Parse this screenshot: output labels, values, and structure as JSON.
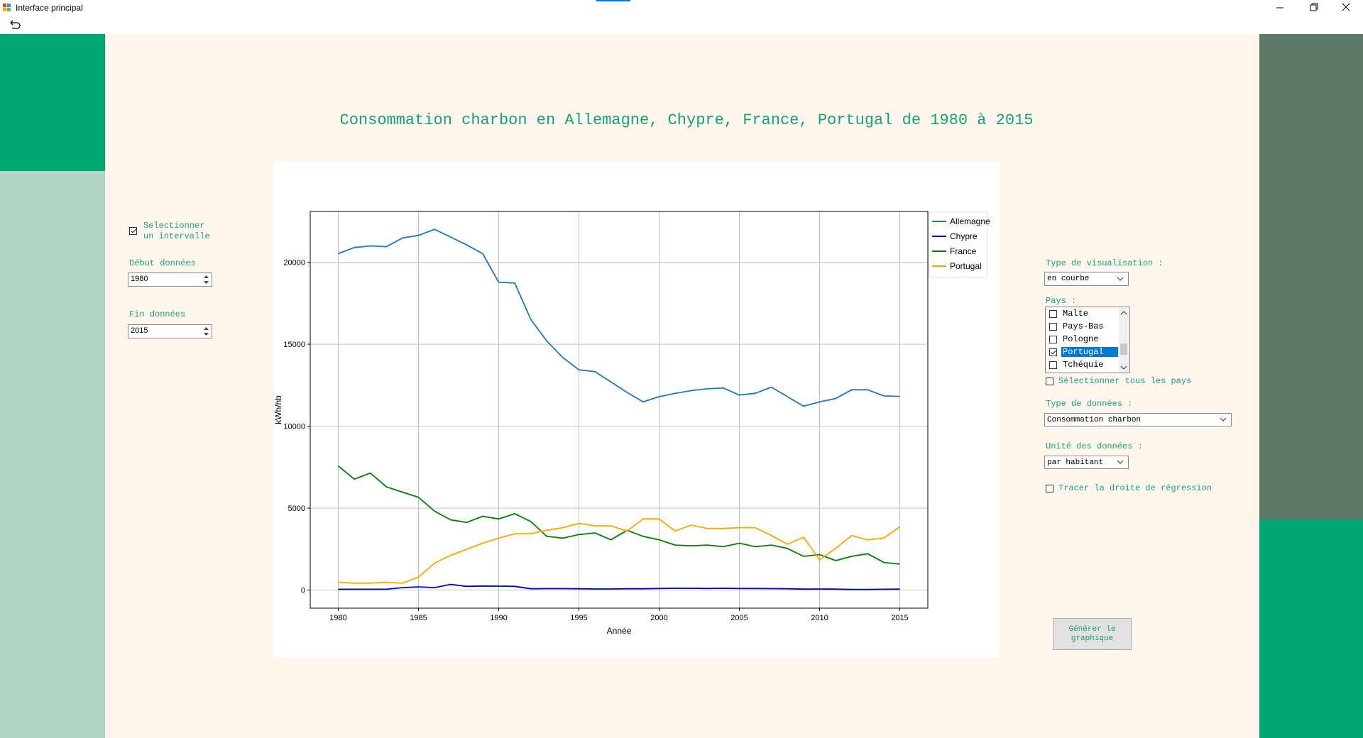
{
  "window": {
    "title": "Interface principal"
  },
  "chart_data": {
    "type": "line",
    "title": "Consommation charbon en Allemagne, Chypre, France, Portugal de 1980 à 2015",
    "x": [
      1980,
      1981,
      1982,
      1983,
      1984,
      1985,
      1986,
      1987,
      1988,
      1989,
      1990,
      1991,
      1992,
      1993,
      1994,
      1995,
      1996,
      1997,
      1998,
      1999,
      2000,
      2001,
      2002,
      2003,
      2004,
      2005,
      2006,
      2007,
      2008,
      2009,
      2010,
      2011,
      2012,
      2013,
      2014,
      2015
    ],
    "series": [
      {
        "name": "Allemagne",
        "color": "#1f77b4",
        "values": [
          20530,
          20900,
          21000,
          20950,
          21480,
          21640,
          22010,
          21540,
          21060,
          20530,
          18780,
          18730,
          16510,
          15190,
          14180,
          13440,
          13330,
          12700,
          12060,
          11480,
          11800,
          12010,
          12170,
          12280,
          12330,
          11900,
          12010,
          12380,
          11800,
          11220,
          11480,
          11690,
          12220,
          12220,
          11850,
          11820
        ]
      },
      {
        "name": "Chypre",
        "color": "#0000cd",
        "values": [
          50,
          50,
          50,
          50,
          150,
          200,
          150,
          350,
          230,
          250,
          240,
          230,
          80,
          90,
          90,
          80,
          70,
          70,
          80,
          80,
          100,
          110,
          110,
          100,
          110,
          100,
          100,
          90,
          80,
          60,
          70,
          60,
          40,
          40,
          50,
          60
        ]
      },
      {
        "name": "France",
        "color": "#008000",
        "values": [
          7570,
          6770,
          7140,
          6300,
          5980,
          5660,
          4820,
          4290,
          4130,
          4500,
          4340,
          4660,
          4180,
          3280,
          3170,
          3390,
          3490,
          3070,
          3650,
          3280,
          3070,
          2750,
          2700,
          2750,
          2650,
          2860,
          2650,
          2750,
          2540,
          2060,
          2170,
          1800,
          2060,
          2220,
          1690,
          1590
        ]
      },
      {
        "name": "Portugal",
        "color": "#ffa500",
        "values": [
          480,
          420,
          420,
          480,
          420,
          790,
          1640,
          2120,
          2490,
          2860,
          3170,
          3440,
          3440,
          3650,
          3810,
          4070,
          3920,
          3920,
          3600,
          4340,
          4340,
          3600,
          3970,
          3760,
          3760,
          3810,
          3810,
          3330,
          2800,
          3230,
          1850,
          2540,
          3330,
          3070,
          3170,
          3860
        ]
      }
    ],
    "xlabel": "Année",
    "ylabel": "kWh/hb",
    "xlim": [
      1978.25,
      2016.75
    ],
    "ylim": [
      -1100,
      23100
    ],
    "xticks": [
      1980,
      1985,
      1990,
      1995,
      2000,
      2005,
      2010,
      2015
    ],
    "yticks": [
      0,
      5000,
      10000,
      15000,
      20000
    ],
    "grid": true,
    "legend": "outside upper right"
  },
  "controls": {
    "interval": {
      "label": "Selectionner un intervalle",
      "checked": true
    },
    "start": {
      "label": "Début données",
      "value": "1980"
    },
    "end": {
      "label": "Fin données",
      "value": "2015"
    },
    "visualisation": {
      "label": "Type de visualisation :",
      "value": "en courbe"
    },
    "countries": {
      "label": "Pays :",
      "items": [
        {
          "name": "Malte",
          "checked": false,
          "selected": false
        },
        {
          "name": "Pays-Bas",
          "checked": false,
          "selected": false
        },
        {
          "name": "Pologne",
          "checked": false,
          "selected": false
        },
        {
          "name": "Portugal",
          "checked": true,
          "selected": true
        },
        {
          "name": "Tchéquie",
          "checked": false,
          "selected": false
        }
      ]
    },
    "select_all": {
      "label": "Sélectionner tous les pays",
      "checked": false
    },
    "data_type": {
      "label": "Type de données :",
      "value": "Consommation charbon"
    },
    "unit": {
      "label": "Unité des données :",
      "value": "par habitant"
    },
    "regression": {
      "label": "Tracer la droite de régression",
      "checked": false
    },
    "generate": {
      "label": "Générer le graphique"
    }
  }
}
